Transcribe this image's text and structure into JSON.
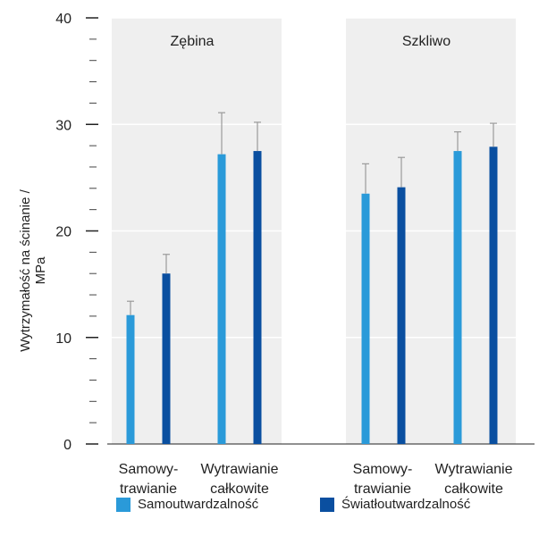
{
  "chart_data": {
    "type": "bar",
    "ylabel": "Wytrzymałość na ścinanie / MPa",
    "ylim": [
      0,
      40
    ],
    "yticks": [
      0,
      10,
      20,
      30,
      40
    ],
    "grid": true,
    "legend_position": "bottom",
    "panels": [
      {
        "title": "Zębina",
        "categories": [
          "Samowy-\ntrawianie",
          "Wytrawianie\ncałkowite"
        ],
        "series": [
          {
            "name": "Samoutwardzalność",
            "values": [
              12.1,
              27.2
            ],
            "errors": [
              1.3,
              3.9
            ]
          },
          {
            "name": "Światłoutwardzalność",
            "values": [
              16.0,
              27.5
            ],
            "errors": [
              1.8,
              2.7
            ]
          }
        ]
      },
      {
        "title": "Szkliwo",
        "categories": [
          "Samowy-\ntrawianie",
          "Wytrawianie\ncałkowite"
        ],
        "series": [
          {
            "name": "Samoutwardzalność",
            "values": [
              23.5,
              27.5
            ],
            "errors": [
              2.8,
              1.8
            ]
          },
          {
            "name": "Światłoutwardzalność",
            "values": [
              24.1,
              27.9
            ],
            "errors": [
              2.8,
              2.2
            ]
          }
        ]
      }
    ],
    "legend": [
      "Samoutwardzalność",
      "Światłoutwardzalność"
    ],
    "colors": {
      "series1": "#2a9ad9",
      "series2": "#0a4fa0",
      "panel_bg": "#efefef",
      "grid": "#ffffff",
      "errorbar": "#9a9a9a"
    }
  }
}
